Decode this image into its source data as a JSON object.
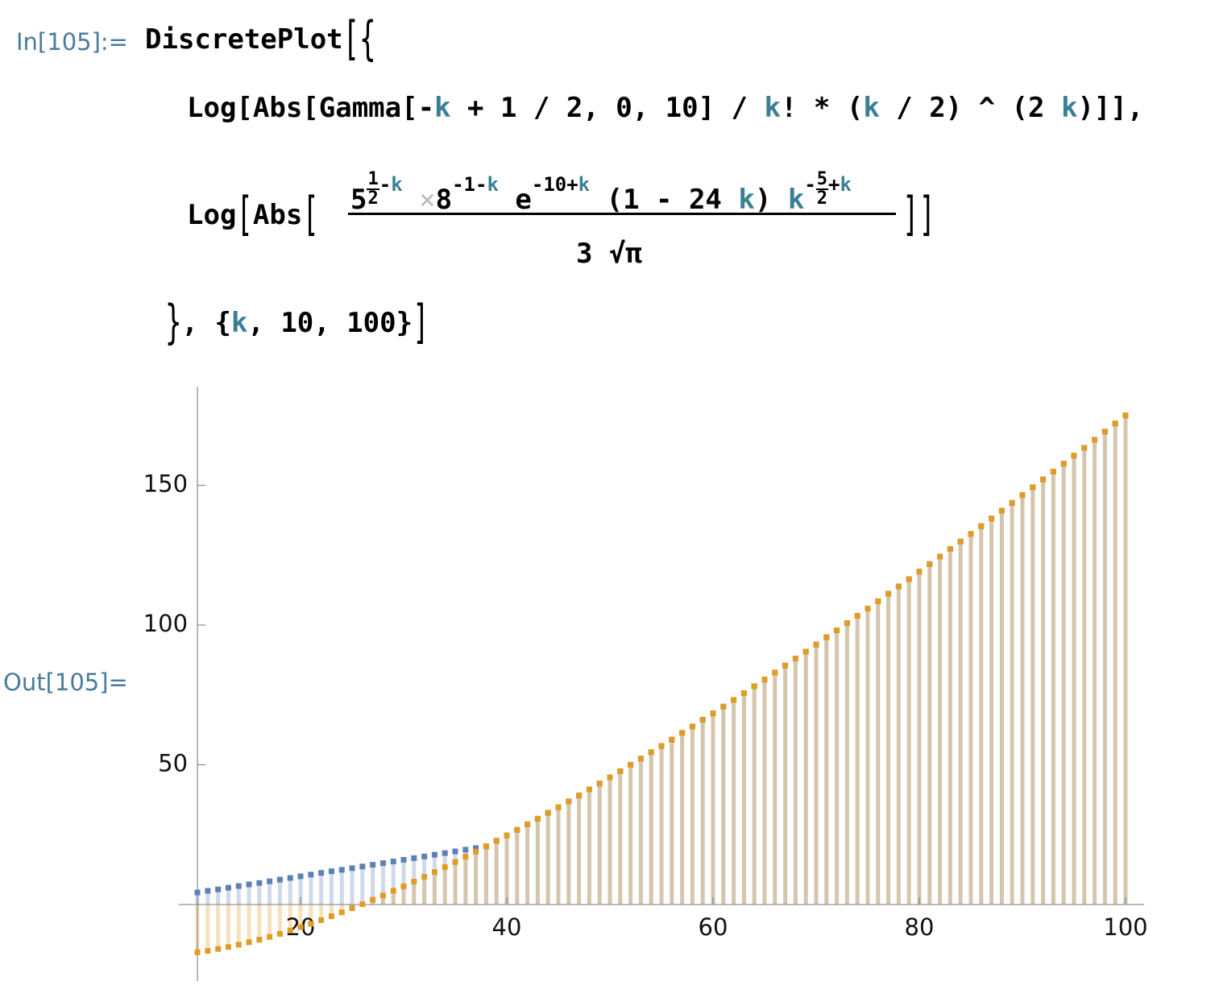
{
  "notebook": {
    "in_label": "In[105]:=",
    "out_label": "Out[105]=",
    "line1": [
      "DiscretePlot",
      "[",
      "{"
    ],
    "line2": [
      "Log[Abs[Gamma[-",
      "k",
      " + 1 / 2, 0, 10] / ",
      "k",
      "! * (",
      "k",
      " / 2) ^ (2 ",
      "k",
      ")]],"
    ],
    "line3": {
      "head": [
        "Log",
        "[",
        "Abs",
        "["
      ],
      "num": [
        "5",
        "1",
        "2",
        "-",
        "k",
        "×",
        "8",
        "-1-",
        "k",
        "e",
        "-10+",
        "k",
        "(1 - 24 ",
        "k",
        ")",
        "k",
        "-",
        "5",
        "2",
        "+",
        "k"
      ],
      "den": "3 √π",
      "tail": [
        "]",
        "]"
      ]
    },
    "line4": [
      "}",
      ", {",
      "k",
      ", 10, 100}",
      "]"
    ]
  },
  "chart_data": {
    "type": "discrete",
    "xlim": [
      8.2,
      101.8
    ],
    "ylim": [
      -27.4,
      185.3
    ],
    "xticks": [
      20,
      40,
      60,
      80,
      100
    ],
    "yticks": [
      50,
      100,
      150
    ],
    "axes_origin": [
      10,
      0
    ],
    "x": [
      10,
      11,
      12,
      13,
      14,
      15,
      16,
      17,
      18,
      19,
      20,
      21,
      22,
      23,
      24,
      25,
      26,
      27,
      28,
      29,
      30,
      31,
      32,
      33,
      34,
      35,
      36,
      37,
      38,
      39,
      40,
      41,
      42,
      43,
      44,
      45,
      46,
      47,
      48,
      49,
      50,
      51,
      52,
      53,
      54,
      55,
      56,
      57,
      58,
      59,
      60,
      61,
      62,
      63,
      64,
      65,
      66,
      67,
      68,
      69,
      70,
      71,
      72,
      73,
      74,
      75,
      76,
      77,
      78,
      79,
      80,
      81,
      82,
      83,
      84,
      85,
      86,
      87,
      88,
      89,
      90,
      91,
      92,
      93,
      94,
      95,
      96,
      97,
      98,
      99,
      100
    ],
    "series": [
      {
        "color": "#5e81b5",
        "values": [
          4.3,
          4.9,
          5.4,
          6.0,
          6.6,
          7.2,
          7.7,
          8.3,
          8.9,
          9.5,
          10.1,
          10.7,
          11.3,
          11.9,
          12.4,
          13.0,
          13.6,
          14.2,
          14.8,
          15.4,
          16.0,
          16.6,
          17.2,
          17.8,
          18.4,
          19.0,
          19.6,
          20.2,
          20.8,
          22.8,
          24.7,
          26.7,
          28.7,
          30.7,
          32.8,
          34.8,
          36.9,
          39.0,
          41.2,
          43.3,
          45.5,
          47.7,
          50.0,
          52.2,
          54.5,
          56.7,
          59.0,
          61.4,
          63.7,
          66.1,
          68.4,
          70.8,
          73.2,
          75.6,
          78.1,
          80.5,
          83.0,
          85.5,
          88.0,
          90.5,
          93.0,
          95.6,
          98.1,
          100.7,
          103.3,
          105.9,
          108.5,
          111.2,
          113.8,
          116.4,
          119.1,
          121.8,
          124.5,
          127.2,
          129.9,
          132.6,
          135.4,
          138.1,
          140.9,
          143.7,
          146.5,
          149.3,
          152.1,
          154.9,
          157.7,
          160.6,
          163.4,
          166.3,
          169.2,
          172.1,
          175.0
        ]
      },
      {
        "color": "#e19c24",
        "values": [
          -17.1,
          -16.6,
          -15.9,
          -15.2,
          -14.4,
          -13.5,
          -12.6,
          -11.6,
          -10.5,
          -9.3,
          -8.1,
          -6.9,
          -5.6,
          -4.2,
          -2.8,
          -1.3,
          0.1,
          1.7,
          3.2,
          4.9,
          6.5,
          8.2,
          9.9,
          11.6,
          13.4,
          15.2,
          17.1,
          18.9,
          20.8,
          22.8,
          24.7,
          26.7,
          28.7,
          30.7,
          32.8,
          34.8,
          36.9,
          39.0,
          41.2,
          43.3,
          45.5,
          47.7,
          50.0,
          52.2,
          54.5,
          56.7,
          59.0,
          61.4,
          63.7,
          66.1,
          68.4,
          70.8,
          73.2,
          75.6,
          78.1,
          80.5,
          83.0,
          85.5,
          88.0,
          90.5,
          93.0,
          95.6,
          98.1,
          100.7,
          103.3,
          105.9,
          108.5,
          111.2,
          113.8,
          116.4,
          119.1,
          121.8,
          124.5,
          127.2,
          129.9,
          132.6,
          135.4,
          138.1,
          140.9,
          143.7,
          146.5,
          149.3,
          152.1,
          154.9,
          157.7,
          160.6,
          163.4,
          166.3,
          169.2,
          172.1,
          175.0
        ]
      }
    ]
  }
}
